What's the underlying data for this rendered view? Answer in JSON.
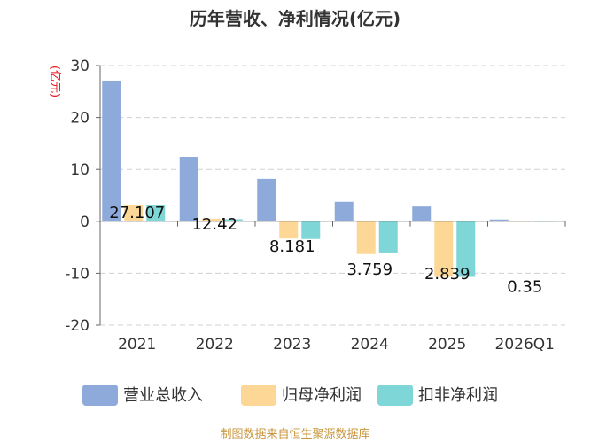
{
  "chart_data": {
    "type": "bar",
    "title": "历年营收、净利情况(亿元)",
    "ylabel": "(亿元)",
    "xlabel": "",
    "categories": [
      "2021",
      "2022",
      "2023",
      "2024",
      "2025",
      "2026Q1"
    ],
    "ylim": [
      -20,
      30
    ],
    "yticks": [
      30,
      20,
      10,
      0,
      -10,
      -20
    ],
    "grid": true,
    "legend_position": "bottom",
    "series": [
      {
        "name": "营业总收入",
        "color": "#8eaadb",
        "values": [
          27.107,
          12.42,
          8.181,
          3.759,
          2.839,
          0.35
        ]
      },
      {
        "name": "归母净利润",
        "color": "#fdd795",
        "values": [
          3.2,
          0.5,
          -3.3,
          -6.3,
          -10.7,
          0.05
        ]
      },
      {
        "name": "扣非净利润",
        "color": "#7fd6d6",
        "values": [
          3.2,
          0.4,
          -3.4,
          -6.0,
          -10.7,
          0.05
        ]
      }
    ],
    "data_labels": [
      "27.107",
      "12.42",
      "8.181",
      "3.759",
      "2.839",
      "0.35"
    ]
  },
  "source": "制图数据来自恒生聚源数据库"
}
